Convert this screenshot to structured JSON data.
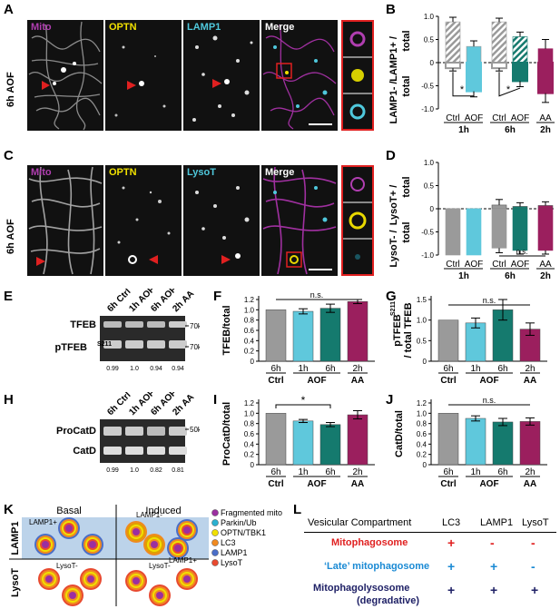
{
  "panels": {
    "A": {
      "letter": "A",
      "side": "6h AOF",
      "titles": [
        "Mito",
        "OPTN",
        "LAMP1",
        "Merge"
      ]
    },
    "C": {
      "letter": "C",
      "side": "6h AOF",
      "titles": [
        "Mito",
        "OPTN",
        "LysoT",
        "Merge"
      ]
    },
    "B": {
      "letter": "B",
      "ylabel_top": "LAMP1+ /",
      "ylabel_top2": "total",
      "ylabel_bot": "LAMP1- /",
      "ylabel_bot2": "total",
      "cats": [
        "Ctrl",
        "AOF",
        "Ctrl",
        "AOF",
        "AA"
      ],
      "groups": [
        "1h",
        "6h",
        "2h"
      ],
      "sig": "*",
      "yticks": [
        "1.0",
        "0.5",
        "0",
        "-0.5",
        "-1.0"
      ]
    },
    "D": {
      "letter": "D",
      "ylabel_top": "LysoT+ /",
      "ylabel_top2": "total",
      "ylabel_bot": "LysoT- /",
      "ylabel_bot2": "total",
      "cats": [
        "Ctrl",
        "AOF",
        "Ctrl",
        "AOF",
        "AA"
      ],
      "groups": [
        "1h",
        "6h",
        "2h"
      ],
      "ns": "n.s.",
      "yticks": [
        "1.0",
        "0.5",
        "0",
        "-0.5",
        "-1.0"
      ]
    },
    "E": {
      "letter": "E",
      "lanes": [
        "6h Ctrl",
        "1h AOF",
        "6h AOF",
        "2h AA"
      ],
      "rows": [
        "TFEB",
        "pTFEB"
      ],
      "row2_sup": "S211",
      "mw": [
        "70kDa",
        "70kDa"
      ],
      "quant": [
        "0.99",
        "1.0",
        "0.94",
        "0.94"
      ]
    },
    "H": {
      "letter": "H",
      "lanes": [
        "6h Ctrl",
        "1h AOF",
        "6h AOF",
        "2h AA"
      ],
      "rows": [
        "ProCatD",
        "CatD"
      ],
      "mw": [
        "50kDa"
      ],
      "quant": [
        "0.99",
        "1.0",
        "0.82",
        "0.81"
      ]
    },
    "F": {
      "letter": "F",
      "ylabel": "TFEB/total",
      "yticks": [
        "1.2",
        "1.0",
        "0.8",
        "0.6",
        "0.4",
        "0.2",
        "0"
      ],
      "ns": "n.s.",
      "xl": [
        "6h",
        "1h",
        "6h",
        "2h"
      ],
      "xg": [
        "Ctrl",
        "AOF",
        "AA"
      ]
    },
    "G": {
      "letter": "G",
      "ylabel": "pTFEB",
      "ylabel_sup": "S211",
      "ylabel2": "/ total TFEB",
      "yticks": [
        "1.5",
        "1.0",
        "0.5",
        "0"
      ],
      "ns": "n.s.",
      "xl": [
        "6h",
        "1h",
        "6h",
        "2h"
      ],
      "xg": [
        "Ctrl",
        "AOF",
        "AA"
      ]
    },
    "I": {
      "letter": "I",
      "ylabel": "ProCatD/total",
      "yticks": [
        "1.2",
        "1.0",
        "0.8",
        "0.6",
        "0.4",
        "0.2",
        "0"
      ],
      "sig": "*",
      "xl": [
        "6h",
        "1h",
        "6h",
        "2h"
      ],
      "xg": [
        "Ctrl",
        "AOF",
        "AA"
      ]
    },
    "J": {
      "letter": "J",
      "ylabel": "CatD/total",
      "yticks": [
        "1.2",
        "1.0",
        "0.8",
        "0.6",
        "0.4",
        "0.2",
        "0"
      ],
      "ns": "n.s.",
      "xl": [
        "6h",
        "1h",
        "6h",
        "2h"
      ],
      "xg": [
        "Ctrl",
        "AOF",
        "AA"
      ]
    },
    "K": {
      "letter": "K",
      "col1": "Basal",
      "col2": "Induced",
      "row1": "LAMP1",
      "row2": "LysoT",
      "tags": [
        "LAMP1+",
        "LAMP1-",
        "LAMP1+",
        "LysoT-",
        "LysoT-"
      ],
      "legend": [
        "Fragmented mito",
        "Parkin/Ub",
        "OPTN/TBK1",
        "LC3",
        "LAMP1",
        "LysoT"
      ]
    },
    "L": {
      "letter": "L",
      "header": [
        "Vesicular Compartment",
        "LC3",
        "LAMP1",
        "LysoT"
      ],
      "rows": [
        {
          "name": "Mitophagosome",
          "vals": [
            "+",
            "-",
            "-"
          ]
        },
        {
          "name": "‘Late’ mitophagosome",
          "vals": [
            "+",
            "+",
            "-"
          ]
        },
        {
          "name": "Mitophagolysosome",
          "name2": "(degradative)",
          "vals": [
            "+",
            "+",
            "+"
          ]
        }
      ]
    }
  },
  "colors": {
    "gray": "#9a9a9a",
    "cyan": "#5fc8dc",
    "teal": "#157a6e",
    "magenta": "#9b1f5e",
    "lightgray": "#d4d4d4",
    "mito": "#b03eb0",
    "optn": "#f0e000",
    "lamp": "#4fc8dc",
    "red": "#e02020",
    "blue": "#1a8ad4",
    "navy": "#1f2166"
  },
  "chart_data": [
    {
      "type": "bar",
      "panel": "B",
      "categories": [
        "Ctrl 1h",
        "AOF 1h",
        "Ctrl 6h",
        "AOF 6h",
        "AA 2h"
      ],
      "series": [
        {
          "name": "LAMP1+",
          "values": [
            0.88,
            0.35,
            0.88,
            0.56,
            0.3
          ],
          "err": [
            0.1,
            0.12,
            0.08,
            0.1,
            0.2
          ]
        },
        {
          "name": "LAMP1-",
          "values": [
            -0.12,
            -0.62,
            -0.12,
            -0.4,
            -0.66
          ],
          "err": [
            0.06,
            0.12,
            0.06,
            0.12,
            0.2
          ]
        }
      ],
      "ylim": [
        -1,
        1
      ]
    },
    {
      "type": "bar",
      "panel": "D",
      "categories": [
        "Ctrl 1h",
        "AOF 1h",
        "Ctrl 6h",
        "AOF 6h",
        "AA 2h"
      ],
      "series": [
        {
          "name": "LysoT+",
          "values": [
            0.0,
            0.0,
            0.08,
            0.05,
            0.07
          ],
          "err": [
            0,
            0,
            0.12,
            0.08,
            0.08
          ]
        },
        {
          "name": "LysoT-",
          "values": [
            -1.0,
            -1.0,
            -0.85,
            -0.9,
            -0.9
          ],
          "err": [
            0,
            0,
            0.1,
            0.08,
            0.08
          ]
        }
      ],
      "ylim": [
        -1,
        1
      ]
    },
    {
      "type": "bar",
      "panel": "F",
      "categories": [
        "6h Ctrl",
        "1h AOF",
        "6h AOF",
        "2h AA"
      ],
      "values": [
        1.0,
        0.97,
        1.03,
        1.16
      ],
      "err": [
        0,
        0.05,
        0.08,
        0.04
      ],
      "ylim": [
        0,
        1.2
      ]
    },
    {
      "type": "bar",
      "panel": "G",
      "categories": [
        "6h Ctrl",
        "1h AOF",
        "6h AOF",
        "2h AA"
      ],
      "values": [
        1.0,
        0.93,
        1.25,
        0.78
      ],
      "err": [
        0,
        0.12,
        0.25,
        0.15
      ],
      "ylim": [
        0,
        1.5
      ]
    },
    {
      "type": "bar",
      "panel": "I",
      "categories": [
        "6h Ctrl",
        "1h AOF",
        "6h AOF",
        "2h AA"
      ],
      "values": [
        1.0,
        0.85,
        0.78,
        0.97
      ],
      "err": [
        0,
        0.03,
        0.04,
        0.08
      ],
      "ylim": [
        0,
        1.2
      ]
    },
    {
      "type": "bar",
      "panel": "J",
      "categories": [
        "6h Ctrl",
        "1h AOF",
        "6h AOF",
        "2h AA"
      ],
      "values": [
        1.0,
        0.9,
        0.83,
        0.84
      ],
      "err": [
        0,
        0.05,
        0.07,
        0.07
      ],
      "ylim": [
        0,
        1.2
      ]
    }
  ]
}
